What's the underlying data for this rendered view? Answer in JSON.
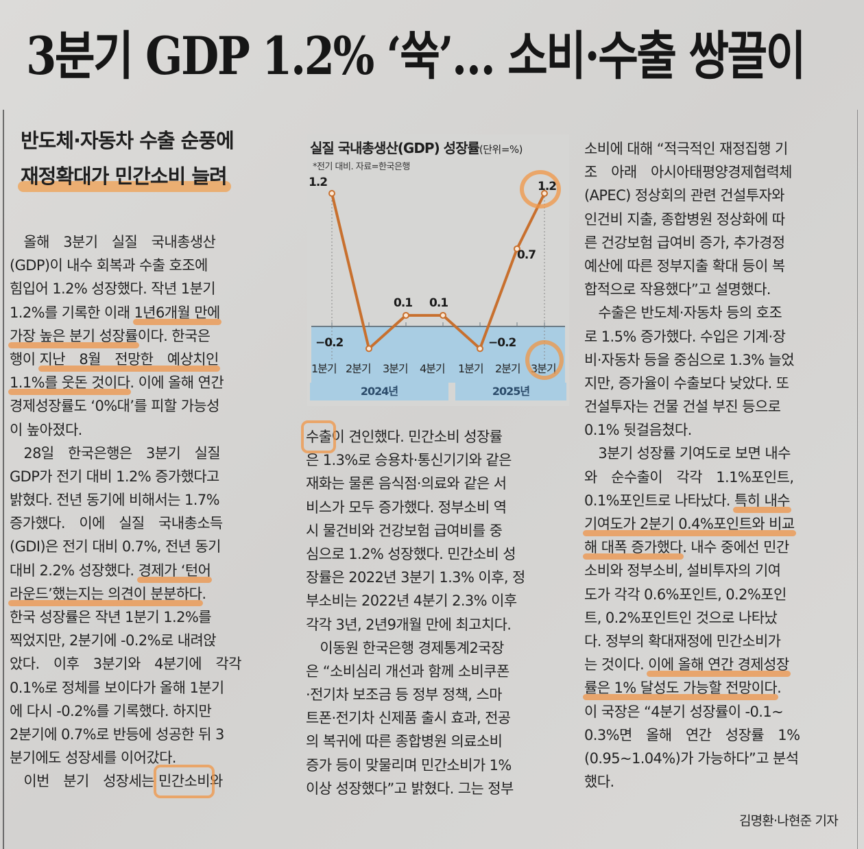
{
  "article": {
    "headline": "3분기 GDP 1.2% ‘쑥’… 소비·수출 쌍끌이",
    "subhead": {
      "line1": "반도체·자동차 수출 순풍에",
      "line2": "재정확대가 민간소비 늘려"
    },
    "byline": "김명환·나현준 기자",
    "columns": {
      "col1": [
        {
          "text": "　올해　3분기　실질　국내총생산",
          "hl": ""
        },
        {
          "text": "(GDP)이 내수 회복과 수출 호조에",
          "hl": ""
        },
        {
          "text": "힘입어 1.2% 성장했다. 작년 1분기",
          "hl": ""
        },
        {
          "pre": "1.2%를 기록한 이래 ",
          "hl": "1년6개월 만에",
          "post": ""
        },
        {
          "pre": "",
          "hl": "가장 높은 분기 성장률",
          "post": "이다. 한국은"
        },
        {
          "pre": "행이 ",
          "hl": "지난　8월　전망한　예상치인",
          "post": ""
        },
        {
          "pre": "",
          "hl": "1.1%를 웃돈 것이다",
          "post": ". 이에 올해 연간"
        },
        {
          "text": "경제성장률도 ‘0%대’를 피할 가능성",
          "hl": ""
        },
        {
          "text": "이 높아졌다.",
          "hl": ""
        },
        {
          "text": "　28일　한국은행은　3분기　실질",
          "hl": ""
        },
        {
          "text": "GDP가 전기 대비 1.2% 증가했다고",
          "hl": ""
        },
        {
          "text": "밝혔다. 전년 동기에 비해서는 1.7%",
          "hl": ""
        },
        {
          "text": "증가했다.　이에　실질　국내총소득",
          "hl": ""
        },
        {
          "text": "(GDI)은 전기 대비 0.7%, 전년 동기",
          "hl": ""
        },
        {
          "pre": "대비 2.2% 성장했다. ",
          "hl": "경제가 ‘턴어",
          "post": ""
        },
        {
          "pre": "",
          "hl": "라운드’했는지는 의견이 분분하다",
          "post": "."
        },
        {
          "text": "한국 성장률은 작년 1분기 1.2%를",
          "hl": ""
        },
        {
          "text": "찍었지만, 2분기에 -0.2%로 내려앉",
          "hl": ""
        },
        {
          "text": "았다.　이후　3분기와　4분기에　각각",
          "hl": ""
        },
        {
          "text": "0.1%로 정체를 보이다가 올해 1분기",
          "hl": ""
        },
        {
          "text": "에 다시 -0.2%를 기록했다. 하지만",
          "hl": ""
        },
        {
          "text": "2분기에 0.7%로 반등에 성공한 뒤 3",
          "hl": ""
        },
        {
          "text": "분기에도 성장세를 이어갔다.",
          "hl": ""
        },
        {
          "pre": "　이번　분기　성장세는 ",
          "box": "민간소비",
          "post": "와"
        }
      ],
      "col2": [
        {
          "pre": "",
          "box": "수출",
          "post": "이 견인했다. 민간소비 성장률"
        },
        {
          "text": "은 1.3%로 승용차·통신기기와 같은"
        },
        {
          "text": "재화는 물론 음식점·의료와 같은 서"
        },
        {
          "text": "비스가 모두 증가했다. 정부소비 역"
        },
        {
          "text": "시 물건비와 건강보험 급여비를 중"
        },
        {
          "text": "심으로 1.2% 성장했다. 민간소비 성"
        },
        {
          "text": "장률은 2022년 3분기 1.3% 이후, 정"
        },
        {
          "text": "부소비는 2022년 4분기 2.3% 이후"
        },
        {
          "text": "각각 3년, 2년9개월 만에 최고치다."
        },
        {
          "text": "　이동원 한국은행 경제통계2국장"
        },
        {
          "text": "은 “소비심리 개선과 함께 소비쿠폰"
        },
        {
          "text": "·전기차 보조금 등 정부 정책, 스마"
        },
        {
          "text": "트폰·전기차 신제품 출시 효과, 전공"
        },
        {
          "text": "의 복귀에 따른 종합병원 의료소비"
        },
        {
          "text": "증가 등이 맞물리며 민간소비가 1%"
        },
        {
          "text": "이상 성장했다”고 밝혔다. 그는 정부"
        }
      ],
      "col3": [
        {
          "text": "소비에 대해 “적극적인 재정집행 기"
        },
        {
          "text": "조　아래　아시아태평양경제협력체"
        },
        {
          "text": "(APEC) 정상회의 관련 건설투자와"
        },
        {
          "text": "인건비 지출, 종합병원 정상화에 따"
        },
        {
          "text": "른 건강보험 급여비 증가, 추가경정"
        },
        {
          "text": "예산에 따른 정부지출 확대 등이 복"
        },
        {
          "text": "합적으로 작용했다”고 설명했다."
        },
        {
          "text": "　수출은 반도체·자동차 등의 호조"
        },
        {
          "text": "로 1.5% 증가했다. 수입은 기계·장"
        },
        {
          "text": "비·자동차 등을 중심으로 1.3% 늘었"
        },
        {
          "text": "지만, 증가율이 수출보다 낮았다. 또"
        },
        {
          "text": "건설투자는 건물 건설 부진 등으로"
        },
        {
          "text": "0.1% 뒷걸음쳤다."
        },
        {
          "text": "　3분기 성장률 기여도로 보면 내수"
        },
        {
          "text": "와　순수출이　각각　1.1%포인트,"
        },
        {
          "pre": "0.1%포인트로 나타났다. ",
          "hl": "특히 내수",
          "post": ""
        },
        {
          "pre": "",
          "hl": "기여도가 2분기 0.4%포인트와 비교",
          "post": ""
        },
        {
          "pre": "",
          "hl": "해 대폭 증가했다",
          "post": ". 내수 중에선 민간"
        },
        {
          "text": "소비와 정부소비, 설비투자의 기여"
        },
        {
          "text": "도가 각각 0.6%포인트, 0.2%포인"
        },
        {
          "text": "트, 0.2%포인트인 것으로 나타났"
        },
        {
          "text": "다. 정부의 확대재정에 민간소비가"
        },
        {
          "pre": "는 것이다. ",
          "hl": "이에 올해 연간 경제성장",
          "post": ""
        },
        {
          "pre": "",
          "hl": "률은 1% 달성도 가능할 전망이다",
          "post": "."
        },
        {
          "text": "이 국장은 “4분기 성장률이 -0.1~"
        },
        {
          "text": "0.3%면　올해　연간　성장률　1%"
        },
        {
          "text": "(0.95~1.04%)가 가능하다”고 분석"
        },
        {
          "text": "했다."
        }
      ]
    }
  },
  "chart_data": {
    "type": "line",
    "title": "실질 국내총생산(GDP) 성장률",
    "unit": "(단위=%)",
    "note": "*전기 대비. 자료=한국은행",
    "categories": [
      "1분기",
      "2분기",
      "3분기",
      "4분기",
      "1분기",
      "2분기",
      "3분기"
    ],
    "year_groups": [
      {
        "label": "2024년",
        "span": [
          0,
          3
        ]
      },
      {
        "label": "2025년",
        "span": [
          4,
          6
        ]
      }
    ],
    "series": [
      {
        "name": "GDP 성장률",
        "values": [
          1.2,
          -0.2,
          0.1,
          0.1,
          -0.2,
          0.7,
          1.2
        ]
      }
    ],
    "value_labels": [
      "1.2",
      "−0.2",
      "0.1",
      "0.1",
      "−0.2",
      "0.7",
      "1.2"
    ],
    "xlabel": "",
    "ylabel": "",
    "ylim": [
      -0.3,
      1.3
    ],
    "grid": false,
    "line_color": "#c8702e",
    "negative_area_color": "#a9cde3",
    "highlight_color": "#f0963c"
  }
}
